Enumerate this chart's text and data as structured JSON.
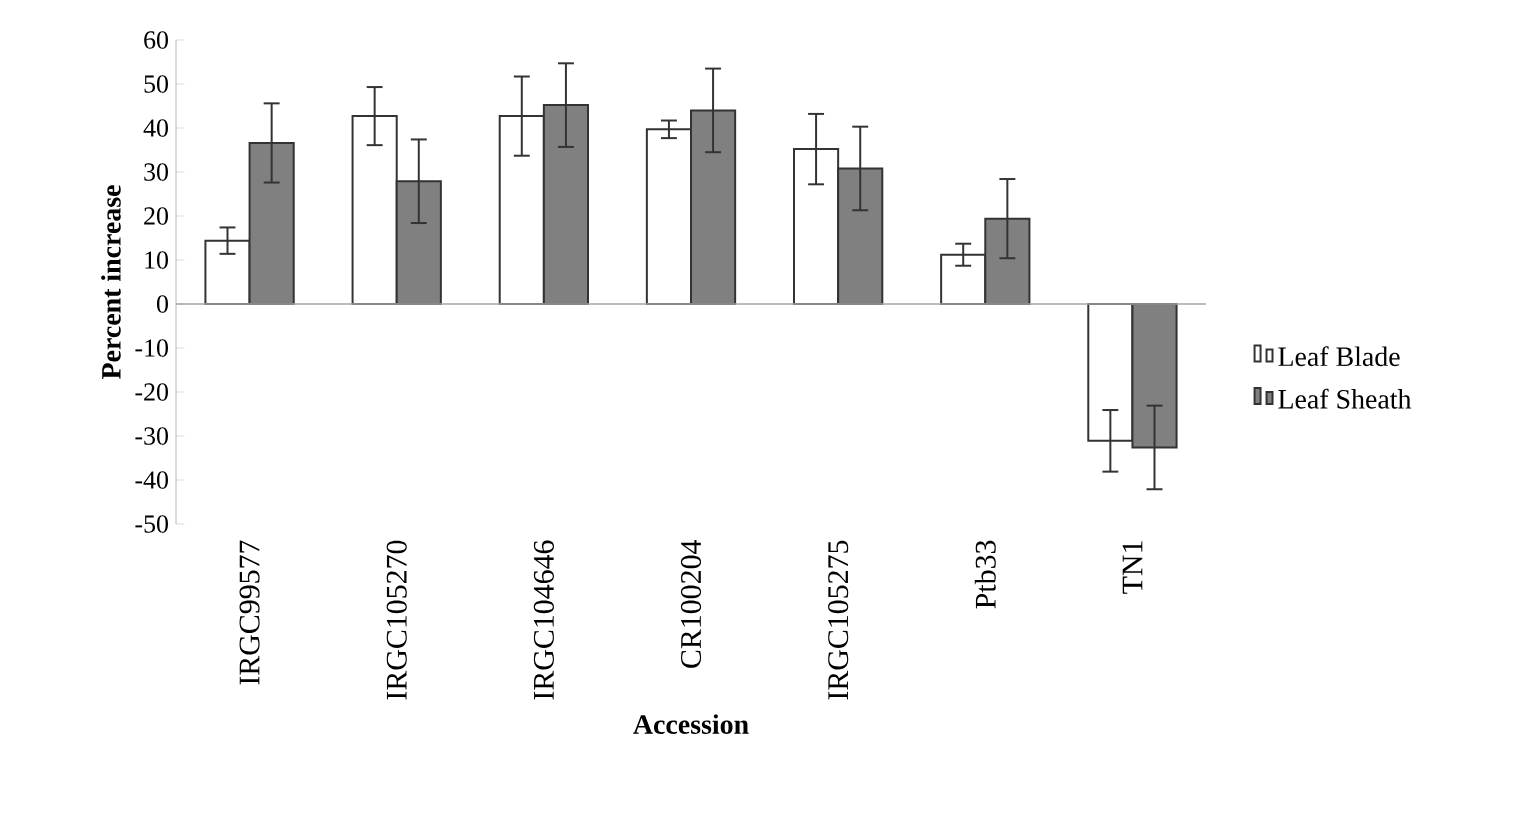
{
  "chart_data": {
    "type": "bar",
    "xlabel": "Accession",
    "ylabel": "Percent increase",
    "categories": [
      "IRGC99577",
      "IRGC105270",
      "IRGC104646",
      "CR100204",
      "IRGC105275",
      "Ptb33",
      "TN1"
    ],
    "series": [
      {
        "name": "Leaf Blade",
        "color": "#ffffff",
        "values": [
          14.4,
          42.7,
          42.7,
          39.7,
          35.2,
          11.2,
          -31.1
        ],
        "errors": [
          3,
          6.6,
          9,
          2,
          8,
          2.5,
          7
        ]
      },
      {
        "name": "Leaf Sheath",
        "color": "#808080",
        "values": [
          36.6,
          27.9,
          45.2,
          44,
          30.8,
          19.4,
          -32.6
        ],
        "errors": [
          9,
          9.5,
          9.5,
          9.5,
          9.5,
          9,
          9.5
        ]
      }
    ],
    "ylim": [
      -50,
      60
    ],
    "yticks": [
      -50,
      -40,
      -30,
      -20,
      -10,
      0,
      10,
      20,
      30,
      40,
      50,
      60
    ],
    "legend": "right"
  }
}
